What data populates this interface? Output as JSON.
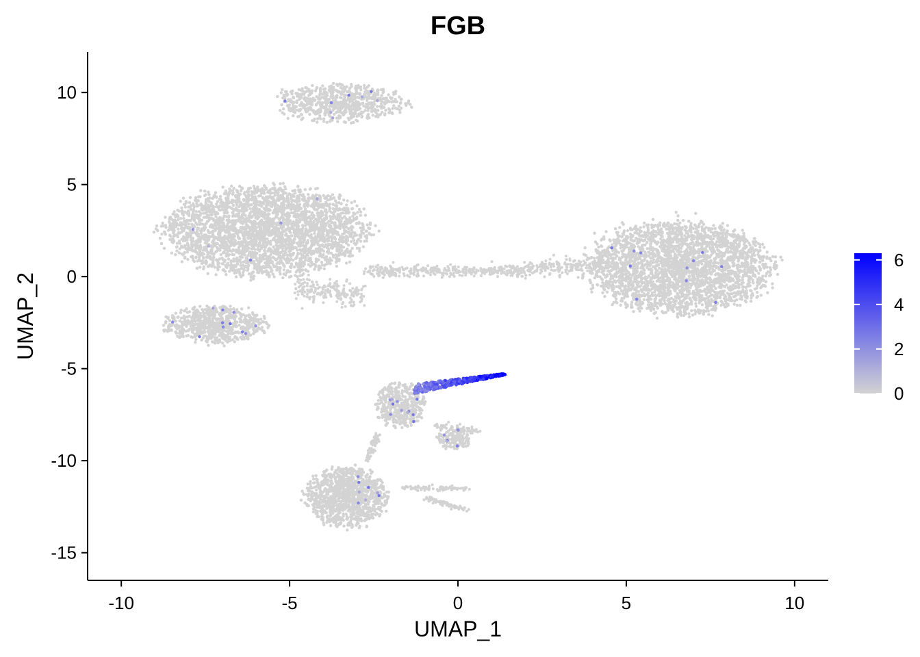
{
  "chart_data": {
    "type": "scatter",
    "title": "FGB",
    "xlabel": "UMAP_1",
    "ylabel": "UMAP_2",
    "xlim": [
      -11,
      11
    ],
    "ylim": [
      -16.5,
      12.2
    ],
    "xticks": [
      -10,
      -5,
      0,
      5,
      10
    ],
    "yticks": [
      10,
      5,
      0,
      -5,
      -10,
      -15
    ],
    "xtick_labels": [
      "-10",
      "-5",
      "0",
      "5",
      "10"
    ],
    "ytick_labels": [
      "10",
      "5",
      "0",
      "-5",
      "-10",
      "-15"
    ],
    "grid": false,
    "legend": {
      "placement": "right",
      "min": 0,
      "max": 6.3,
      "ticks": [
        0,
        2,
        4,
        6
      ],
      "tick_labels": [
        "0",
        "2",
        "4",
        "6"
      ],
      "low_color": "#d3d3d3",
      "high_color": "#0000ff"
    },
    "point_color_default": "#d3d3d3",
    "clusters": [
      {
        "label": "top cluster",
        "cx": -3.5,
        "cy": 9.4,
        "rx": 1.9,
        "ry": 1.0,
        "n": 700
      },
      {
        "label": "left large cluster",
        "cx": -5.7,
        "cy": 2.5,
        "rx": 3.0,
        "ry": 2.4,
        "n": 3200
      },
      {
        "label": "left lower cluster",
        "cx": -7.2,
        "cy": -2.6,
        "rx": 1.5,
        "ry": 1.0,
        "n": 700
      },
      {
        "label": "right large cluster",
        "cx": 6.6,
        "cy": 0.5,
        "rx": 2.7,
        "ry": 2.5,
        "n": 3000
      },
      {
        "label": "middle cluster",
        "cx": -1.7,
        "cy": -7.0,
        "rx": 0.75,
        "ry": 1.2,
        "n": 400
      },
      {
        "label": "small arm cluster",
        "cx": -0.1,
        "cy": -8.8,
        "rx": 0.5,
        "ry": 0.55,
        "n": 150
      },
      {
        "label": "bottom cluster",
        "cx": -3.3,
        "cy": -12.0,
        "rx": 1.2,
        "ry": 1.6,
        "n": 1100
      }
    ],
    "bridges": [
      {
        "from": [
          -2.8,
          0.3
        ],
        "to": [
          2.0,
          0.3
        ],
        "width": 0.3,
        "n": 350
      },
      {
        "from": [
          2.0,
          0.4
        ],
        "to": [
          4.4,
          0.7
        ],
        "width": 0.45,
        "n": 200
      },
      {
        "from": [
          -4.8,
          -0.6
        ],
        "to": [
          -2.8,
          -1.0
        ],
        "width": 0.6,
        "n": 200
      },
      {
        "from": [
          0.3,
          -11.5
        ],
        "to": [
          -1.7,
          -11.5
        ],
        "width": 0.15,
        "n": 80
      },
      {
        "from": [
          -1.0,
          -12.0
        ],
        "to": [
          0.3,
          -12.7
        ],
        "width": 0.12,
        "n": 70
      },
      {
        "from": [
          -0.7,
          -8.1
        ],
        "to": [
          0.6,
          -8.4
        ],
        "width": 0.18,
        "n": 60
      },
      {
        "from": [
          -2.7,
          -9.9
        ],
        "to": [
          -2.4,
          -8.7
        ],
        "width": 0.25,
        "n": 60
      }
    ],
    "expressing_region": {
      "from": [
        -1.3,
        -6.1
      ],
      "to": [
        1.4,
        -5.3
      ],
      "width_start": 0.55,
      "width_end": 0.08,
      "value_min": 1.5,
      "value_max": 6.3,
      "n": 420
    },
    "scattered_expressing_cells": {
      "n": 60,
      "value_min": 1.0,
      "value_max": 3.0
    }
  }
}
